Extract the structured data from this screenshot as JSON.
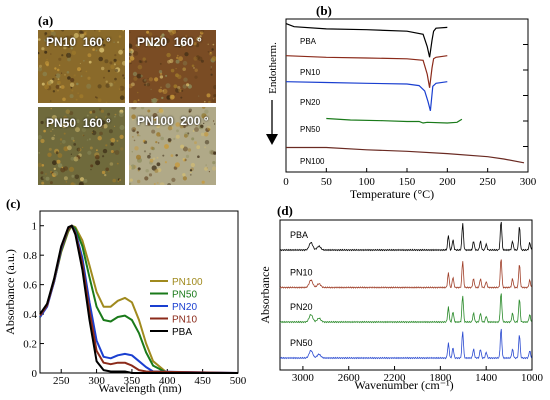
{
  "panels": {
    "a": "(a)",
    "b": "(b)",
    "c": "(c)",
    "d": "(d)"
  },
  "micrographs": [
    {
      "sample": "PN10",
      "temp": "160 °",
      "color": "#8a6a2a"
    },
    {
      "sample": "PN20",
      "temp": "160 °",
      "color": "#7a4c24"
    },
    {
      "sample": "PN50",
      "temp": "160 °",
      "color": "#6f6a3c"
    },
    {
      "sample": "PN100",
      "temp": "200 °",
      "color": "#b0a988"
    }
  ],
  "chart_data": [
    {
      "type": "line",
      "panel": "(b)",
      "xlabel": "Temperature (°C)",
      "ylabel": "Endotherm.",
      "xlim": [
        0,
        300
      ],
      "x_ticks": [
        "0",
        "50",
        "100",
        "150",
        "200",
        "250",
        "300"
      ],
      "series": [
        {
          "name": "PBA",
          "color": "#000000",
          "x": [
            0,
            10,
            50,
            100,
            150,
            170,
            175,
            178,
            181,
            183,
            186,
            200
          ],
          "y": [
            0.97,
            0.95,
            0.935,
            0.93,
            0.92,
            0.9,
            0.82,
            0.75,
            0.86,
            0.92,
            0.94,
            0.945
          ]
        },
        {
          "name": "PN10",
          "color": "#8b2a1a",
          "x": [
            0,
            50,
            100,
            150,
            170,
            175,
            178,
            181,
            183,
            186,
            200
          ],
          "y": [
            0.76,
            0.75,
            0.745,
            0.74,
            0.73,
            0.64,
            0.55,
            0.68,
            0.74,
            0.75,
            0.76
          ]
        },
        {
          "name": "PN20",
          "color": "#1a3fd0",
          "x": [
            0,
            50,
            100,
            150,
            165,
            172,
            176,
            179,
            182,
            186,
            200
          ],
          "y": [
            0.59,
            0.585,
            0.58,
            0.575,
            0.565,
            0.53,
            0.46,
            0.4,
            0.56,
            0.58,
            0.59
          ]
        },
        {
          "name": "PN50",
          "color": "#1a7a1a",
          "x": [
            50,
            80,
            120,
            150,
            165,
            170,
            175,
            200,
            212,
            218
          ],
          "y": [
            0.35,
            0.34,
            0.335,
            0.33,
            0.33,
            0.32,
            0.325,
            0.32,
            0.325,
            0.345
          ]
        },
        {
          "name": "PN100",
          "color": "#6a2a22",
          "x": [
            0,
            50,
            100,
            150,
            200,
            250,
            270,
            295
          ],
          "y": [
            0.16,
            0.16,
            0.145,
            0.135,
            0.12,
            0.1,
            0.085,
            0.06
          ]
        }
      ]
    },
    {
      "type": "line",
      "panel": "(c)",
      "xlabel": "Wavelength (nm)",
      "ylabel": "Absorbance (a.u.)",
      "xlim": [
        220,
        500
      ],
      "ylim": [
        0,
        1.1
      ],
      "x_ticks": [
        "250",
        "300",
        "350",
        "400",
        "450",
        "500"
      ],
      "y_ticks": [
        "0",
        "0.2",
        "0.4",
        "0.6",
        "0.8",
        "1"
      ],
      "series": [
        {
          "name": "PN100",
          "color": "#a08a1e",
          "x": [
            220,
            230,
            240,
            250,
            260,
            265,
            270,
            280,
            290,
            300,
            310,
            320,
            330,
            340,
            350,
            360,
            370,
            380,
            400,
            500
          ],
          "y": [
            0.38,
            0.47,
            0.62,
            0.82,
            0.96,
            1.0,
            0.99,
            0.9,
            0.73,
            0.55,
            0.45,
            0.45,
            0.49,
            0.51,
            0.48,
            0.36,
            0.2,
            0.08,
            0.0,
            0.0
          ]
        },
        {
          "name": "PN50",
          "color": "#1a7a1a",
          "x": [
            220,
            230,
            240,
            250,
            260,
            265,
            270,
            280,
            290,
            300,
            310,
            320,
            330,
            340,
            350,
            360,
            370,
            380,
            400,
            500
          ],
          "y": [
            0.38,
            0.46,
            0.62,
            0.83,
            0.97,
            1.0,
            0.98,
            0.86,
            0.65,
            0.45,
            0.36,
            0.35,
            0.38,
            0.39,
            0.36,
            0.27,
            0.14,
            0.05,
            0.0,
            0.0
          ]
        },
        {
          "name": "PN20",
          "color": "#1a3fd0",
          "x": [
            220,
            230,
            240,
            250,
            260,
            265,
            270,
            280,
            290,
            300,
            310,
            320,
            330,
            340,
            350,
            360,
            370,
            380,
            500
          ],
          "y": [
            0.38,
            0.45,
            0.62,
            0.84,
            0.98,
            1.0,
            0.96,
            0.78,
            0.48,
            0.22,
            0.11,
            0.1,
            0.12,
            0.13,
            0.12,
            0.08,
            0.04,
            0.01,
            0.0
          ]
        },
        {
          "name": "PN10",
          "color": "#8b2a1a",
          "x": [
            220,
            230,
            240,
            250,
            260,
            265,
            270,
            280,
            290,
            300,
            310,
            320,
            330,
            340,
            350,
            360,
            370,
            500
          ],
          "y": [
            0.39,
            0.46,
            0.63,
            0.85,
            0.98,
            1.0,
            0.95,
            0.74,
            0.42,
            0.15,
            0.07,
            0.06,
            0.07,
            0.07,
            0.05,
            0.02,
            0.01,
            0.0
          ]
        },
        {
          "name": "PBA",
          "color": "#000000",
          "x": [
            220,
            230,
            240,
            250,
            260,
            265,
            270,
            280,
            290,
            300,
            310,
            320,
            330,
            340,
            350,
            500
          ],
          "y": [
            0.4,
            0.47,
            0.64,
            0.86,
            0.99,
            1.0,
            0.94,
            0.7,
            0.36,
            0.08,
            0.02,
            0.01,
            0.01,
            0.01,
            0.0,
            0.0
          ]
        }
      ]
    },
    {
      "type": "line",
      "panel": "(d)",
      "xlabel": "Wavenumber (cm⁻¹)",
      "ylabel": "Absorbance",
      "xlim": [
        3200,
        1000
      ],
      "x_ticks": [
        "3000",
        "2600",
        "2200",
        "1800",
        "1400",
        "1000"
      ],
      "baseline_offsets": [
        0.8,
        0.55,
        0.32,
        0.08
      ],
      "peaks": [
        {
          "x": 2930,
          "h": 0.05
        },
        {
          "x": 2860,
          "h": 0.025
        },
        {
          "x": 1730,
          "h": 0.1
        },
        {
          "x": 1690,
          "h": 0.07
        },
        {
          "x": 1605,
          "h": 0.18
        },
        {
          "x": 1510,
          "h": 0.06
        },
        {
          "x": 1450,
          "h": 0.06
        },
        {
          "x": 1400,
          "h": 0.04
        },
        {
          "x": 1270,
          "h": 0.2
        },
        {
          "x": 1170,
          "h": 0.06
        },
        {
          "x": 1110,
          "h": 0.16
        },
        {
          "x": 1020,
          "h": 0.05
        }
      ],
      "series": [
        {
          "name": "PBA",
          "color": "#000000"
        },
        {
          "name": "PN10",
          "color": "#a0402a"
        },
        {
          "name": "PN20",
          "color": "#2a8a2a"
        },
        {
          "name": "PN50",
          "color": "#2a4ad0"
        }
      ]
    }
  ]
}
